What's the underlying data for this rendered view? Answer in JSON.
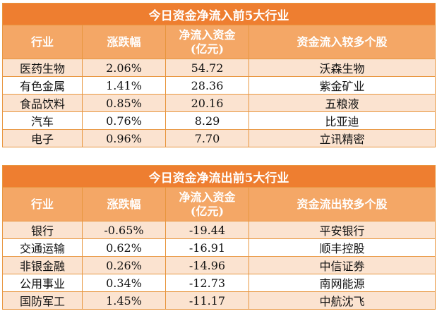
{
  "inflow": {
    "title": "今日资金净流入前5大行业",
    "headers": [
      "行业",
      "涨跌幅",
      "净流入资金",
      "(亿元)",
      "资金流入较多个股"
    ],
    "rows": [
      {
        "industry": "医药生物",
        "change": "2.06%",
        "amount": "54.72",
        "stock": "沃森生物"
      },
      {
        "industry": "有色金属",
        "change": "1.41%",
        "amount": "28.36",
        "stock": "紫金矿业"
      },
      {
        "industry": "食品饮料",
        "change": "0.85%",
        "amount": "20.16",
        "stock": "五粮液"
      },
      {
        "industry": "汽车",
        "change": "0.76%",
        "amount": "8.29",
        "stock": "比亚迪"
      },
      {
        "industry": "电子",
        "change": "0.96%",
        "amount": "7.70",
        "stock": "立讯精密"
      }
    ]
  },
  "outflow": {
    "title": "今日资金净流出前5大行业",
    "headers": [
      "行业",
      "涨跌幅",
      "净流入资金",
      "(亿元)",
      "资金流出较多个股"
    ],
    "rows": [
      {
        "industry": "银行",
        "change": "-0.65%",
        "amount": "-19.44",
        "stock": "平安银行"
      },
      {
        "industry": "交通运输",
        "change": "0.62%",
        "amount": "-16.91",
        "stock": "顺丰控股"
      },
      {
        "industry": "非银金融",
        "change": "0.26%",
        "amount": "-14.96",
        "stock": "中信证券"
      },
      {
        "industry": "公用事业",
        "change": "0.34%",
        "amount": "-12.73",
        "stock": "南网能源"
      },
      {
        "industry": "国防军工",
        "change": "1.45%",
        "amount": "-11.17",
        "stock": "中航沈飞"
      }
    ]
  },
  "colors": {
    "title_bg": "#ee7e30",
    "header_bg": "#f4a766",
    "row_alt_bg": "#fbe3d0",
    "border": "#e8963f"
  }
}
